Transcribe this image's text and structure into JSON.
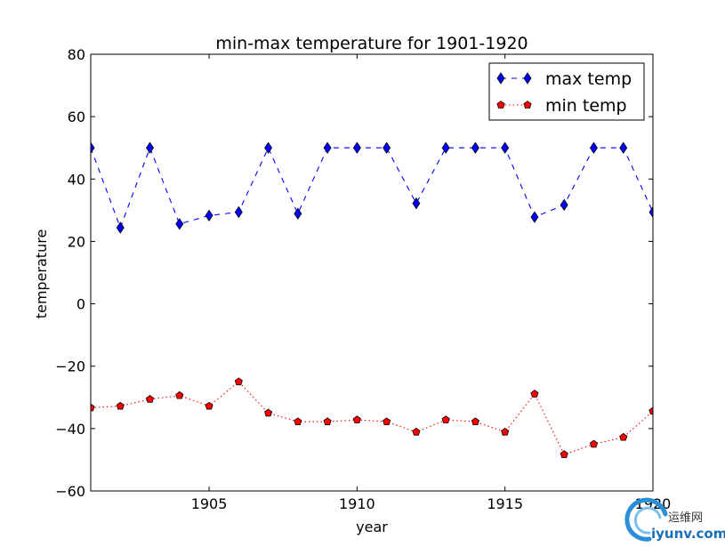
{
  "chart_data": {
    "type": "line",
    "title": "min-max temperature for 1901-1920",
    "xlabel": "year",
    "ylabel": "temperature",
    "xlim": [
      1901,
      1920
    ],
    "ylim": [
      -60,
      80
    ],
    "x": [
      1901,
      1902,
      1903,
      1904,
      1905,
      1906,
      1907,
      1908,
      1909,
      1910,
      1911,
      1912,
      1913,
      1914,
      1915,
      1916,
      1917,
      1918,
      1919,
      1920
    ],
    "xticks": [
      1905,
      1910,
      1915,
      1920
    ],
    "yticks": [
      -60,
      -40,
      -20,
      0,
      20,
      40,
      60,
      80
    ],
    "ytick_labels": [
      "−60",
      "−40",
      "−20",
      "0",
      "20",
      "40",
      "60",
      "80"
    ],
    "grid": false,
    "legend_position": "top-right",
    "series": [
      {
        "name": "max temp",
        "color": "#0000ff",
        "linestyle": "dashed",
        "marker": "diamond",
        "values": [
          50,
          24.4,
          50,
          25.6,
          28.3,
          29.4,
          50,
          28.9,
          50,
          50,
          50,
          32.2,
          50,
          50,
          50,
          27.8,
          31.7,
          50,
          50,
          29.4
        ]
      },
      {
        "name": "min temp",
        "color": "#ff0000",
        "linestyle": "dotted",
        "marker": "pentagon",
        "values": [
          -33.3,
          -32.8,
          -30.6,
          -29.4,
          -32.8,
          -25,
          -35,
          -37.8,
          -37.8,
          -37.2,
          -37.8,
          -41.1,
          -37.2,
          -37.8,
          -41.1,
          -28.9,
          -48.3,
          -45,
          -42.8,
          -34.4
        ]
      }
    ]
  },
  "watermark": {
    "text": "运维网",
    "url": "iyunv.com"
  }
}
